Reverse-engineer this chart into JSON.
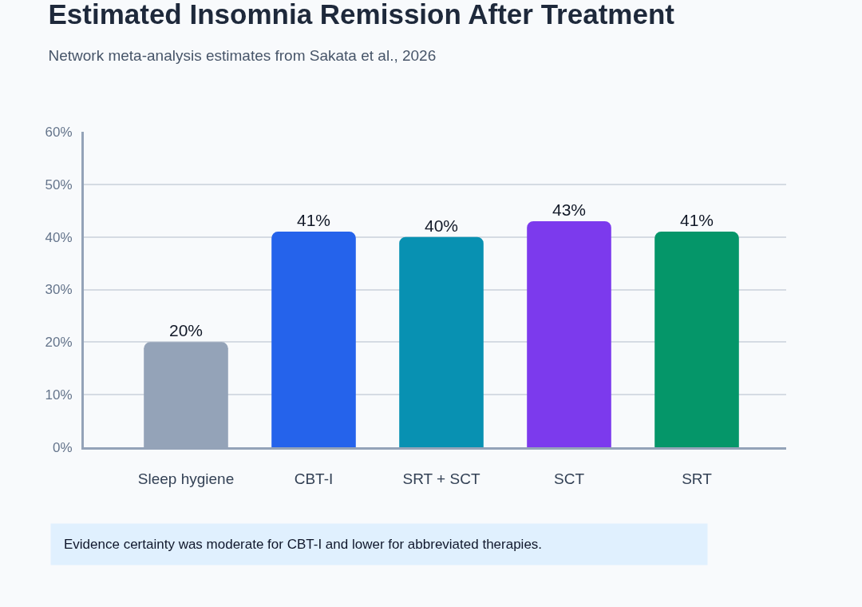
{
  "chart_data": {
    "type": "bar",
    "title": "Estimated Insomnia Remission After Treatment",
    "subtitle": "Network meta-analysis estimates from Sakata et al., 2026",
    "categories": [
      "Sleep hygiene",
      "CBT-I",
      "SRT + SCT",
      "SCT",
      "SRT"
    ],
    "values": [
      20,
      41,
      40,
      43,
      41
    ],
    "colors": [
      "#94a3b8",
      "#2563eb",
      "#0891b2",
      "#7c3aed",
      "#059669"
    ],
    "ylim": [
      0,
      60
    ],
    "yticks": [
      {
        "value": 0,
        "label": "0%"
      },
      {
        "value": 10,
        "label": "10%"
      },
      {
        "value": 20,
        "label": "20%"
      },
      {
        "value": 30,
        "label": "30%"
      },
      {
        "value": 40,
        "label": "40%"
      },
      {
        "value": 50,
        "label": "50%"
      },
      {
        "value": 60,
        "label": "60%"
      }
    ],
    "value_labels": [
      "20%",
      "41%",
      "40%",
      "43%",
      "41%"
    ],
    "grid": "y",
    "annotations": [
      "Evidence certainty was moderate for CBT-I and lower for abbreviated therapies."
    ]
  }
}
